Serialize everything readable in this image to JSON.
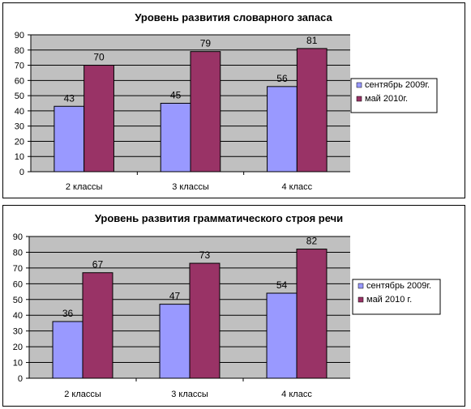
{
  "colors": {
    "plot_bg": "#c0c0c0",
    "series1": "#9999ff",
    "series2": "#993366",
    "grid": "#000000"
  },
  "chart_data": [
    {
      "type": "bar",
      "title": "Уровень развития словарного запаса",
      "categories": [
        "2 классы",
        "3 классы",
        "4 класс"
      ],
      "series": [
        {
          "name": "сентябрь 2009г.",
          "values": [
            43,
            45,
            56
          ]
        },
        {
          "name": "май 2010г.",
          "values": [
            70,
            79,
            81
          ]
        }
      ],
      "ylim": [
        0,
        90
      ],
      "yticks": [
        "0",
        "10",
        "20",
        "30",
        "40",
        "50",
        "60",
        "70",
        "80",
        "90"
      ],
      "grid": true,
      "legend": "right"
    },
    {
      "type": "bar",
      "title": "Уровень развития грамматического строя речи",
      "categories": [
        "2 классы",
        "3 классы",
        "4 класс"
      ],
      "series": [
        {
          "name": "сентябрь 2009г.",
          "values": [
            36,
            47,
            54
          ]
        },
        {
          "name": "май 2010 г.",
          "values": [
            67,
            73,
            82
          ]
        }
      ],
      "ylim": [
        0,
        90
      ],
      "yticks": [
        "0",
        "10",
        "20",
        "30",
        "40",
        "50",
        "60",
        "70",
        "80",
        "90"
      ],
      "grid": true,
      "legend": "right"
    }
  ]
}
